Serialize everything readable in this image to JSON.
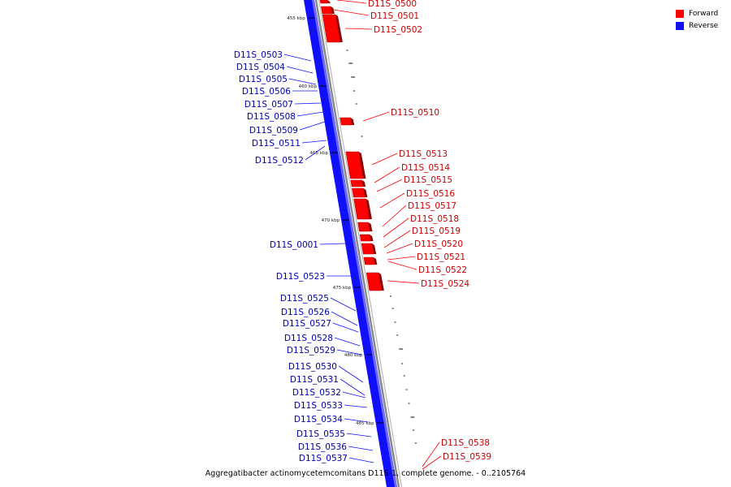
{
  "colors": {
    "forward": "#ff0000",
    "reverse": "#1010ff",
    "forward_label": "#cc0000",
    "reverse_label": "#0000aa",
    "backbone": "#888888"
  },
  "legend": [
    {
      "label": "Forward",
      "color": "#ff0000"
    },
    {
      "label": "Reverse",
      "color": "#1010ff"
    }
  ],
  "caption": "Aggregatibacter actinomycetemcomitans D11S-1, complete genome. - 0..2105764",
  "ticks": [
    "455 kbp",
    "460 kbp",
    "465 kbp",
    "470 kbp",
    "475 kbp",
    "480 kbp",
    "485 kbp"
  ],
  "forward_genes": [
    "D11S_0500",
    "D11S_0501",
    "D11S_0502",
    "D11S_0510",
    "D11S_0513",
    "D11S_0514",
    "D11S_0515",
    "D11S_0516",
    "D11S_0517",
    "D11S_0518",
    "D11S_0519",
    "D11S_0520",
    "D11S_0521",
    "D11S_0522",
    "D11S_0524",
    "D11S_0538",
    "D11S_0539"
  ],
  "reverse_genes": [
    "D11S_0503",
    "D11S_0504",
    "D11S_0505",
    "D11S_0506",
    "D11S_0507",
    "D11S_0508",
    "D11S_0509",
    "D11S_0511",
    "D11S_0512",
    "D11S_0001",
    "D11S_0523",
    "D11S_0525",
    "D11S_0526",
    "D11S_0527",
    "D11S_0528",
    "D11S_0529",
    "D11S_0530",
    "D11S_0531",
    "D11S_0532",
    "D11S_0533",
    "D11S_0534",
    "D11S_0535",
    "D11S_0536",
    "D11S_0537"
  ]
}
